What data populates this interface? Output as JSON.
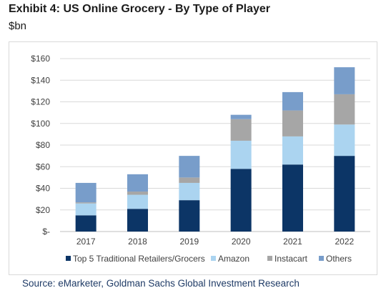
{
  "header": {
    "title": "Exhibit 4: US Online Grocery - By Type of Player",
    "unit": "$bn"
  },
  "source": "Source: eMarketer, Goldman Sachs Global Investment Research",
  "colors": {
    "Top 5 Traditional Retailers/Grocers": "#0c3566",
    "Amazon": "#abd4f0",
    "Instacart": "#a6a6a6",
    "Others": "#789dca"
  },
  "chart_data": {
    "type": "bar",
    "stacked": true,
    "categories": [
      "2017",
      "2018",
      "2019",
      "2020",
      "2021",
      "2022"
    ],
    "series": [
      {
        "name": "Top 5 Traditional Retailers/Grocers",
        "values": [
          15,
          21,
          29,
          58,
          62,
          70
        ]
      },
      {
        "name": "Amazon",
        "values": [
          11,
          13,
          16,
          26,
          26,
          29
        ]
      },
      {
        "name": "Instacart",
        "values": [
          1,
          3,
          5,
          20,
          24,
          28
        ]
      },
      {
        "name": "Others",
        "values": [
          18,
          16,
          20,
          4,
          17,
          25
        ]
      }
    ],
    "ylim": [
      0,
      160
    ],
    "yticks": [
      "$-",
      "$20",
      "$40",
      "$60",
      "$80",
      "$100",
      "$120",
      "$140",
      "$160"
    ],
    "grid": true,
    "legend": "bottom"
  }
}
